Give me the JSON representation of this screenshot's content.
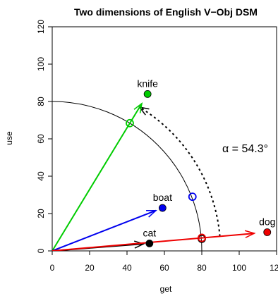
{
  "chart_data": {
    "type": "scatter",
    "title": "Two dimensions of English V−Obj DSM",
    "xlabel": "get",
    "ylabel": "use",
    "xlim": [
      0,
      120
    ],
    "ylim": [
      0,
      120
    ],
    "x_ticks": [
      "0",
      "20",
      "40",
      "60",
      "80",
      "100",
      "120"
    ],
    "y_ticks": [
      "0",
      "20",
      "40",
      "60",
      "80",
      "100",
      "120"
    ],
    "x_tick_values": [
      0,
      20,
      40,
      60,
      80,
      100,
      120
    ],
    "y_tick_values": [
      0,
      20,
      40,
      60,
      80,
      100,
      120
    ],
    "grid": false,
    "points": [
      {
        "label": "knife",
        "x": 51,
        "y": 84,
        "color": "#00cc00"
      },
      {
        "label": "boat",
        "x": 59,
        "y": 23,
        "color": "#0000ee"
      },
      {
        "label": "cat",
        "x": 52,
        "y": 4,
        "color": "#000000"
      },
      {
        "label": "dog",
        "x": 115,
        "y": 10,
        "color": "#ee0000"
      }
    ],
    "unit_circle_radius": 80,
    "arc_points": [
      {
        "x": 41.5,
        "y": 68.4,
        "color": "#00cc00"
      },
      {
        "x": 75,
        "y": 29,
        "color": "#0000ee"
      },
      {
        "x": 80,
        "y": 6.5,
        "color": "#000000"
      },
      {
        "x": 80,
        "y": 7,
        "color": "#ee0000"
      }
    ],
    "angle_annotation": "α = 54.3°",
    "angle_arc": {
      "from_point": "dog",
      "to_point": "knife",
      "radius": 90
    }
  }
}
